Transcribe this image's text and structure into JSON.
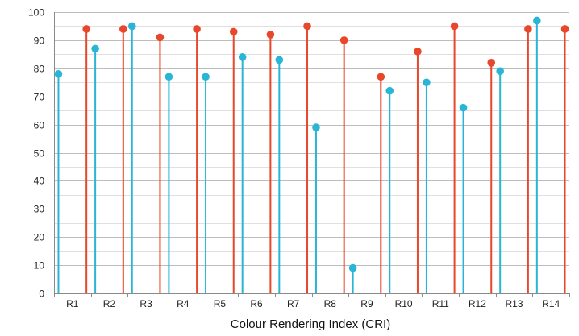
{
  "chart_data": {
    "type": "scatter",
    "subtype": "lollipop",
    "title": "",
    "xlabel": "Colour Rendering Index (CRI)",
    "ylabel": "",
    "categories": [
      "R1",
      "R2",
      "R3",
      "R4",
      "R5",
      "R6",
      "R7",
      "R8",
      "R9",
      "R10",
      "R11",
      "R12",
      "R13",
      "R14"
    ],
    "ylim": [
      0,
      100
    ],
    "yticks": [
      0,
      10,
      20,
      30,
      40,
      50,
      60,
      70,
      80,
      90,
      100
    ],
    "grid": true,
    "legend": "none",
    "series": [
      {
        "color": "#29b6d6",
        "values": [
          78,
          87,
          95,
          77,
          77,
          84,
          83,
          59,
          9,
          72,
          75,
          66,
          79,
          97
        ]
      },
      {
        "color": "#e8472b",
        "values": [
          94,
          94,
          91,
          94,
          93,
          92,
          95,
          90,
          77,
          86,
          95,
          82,
          94,
          94
        ]
      }
    ]
  }
}
